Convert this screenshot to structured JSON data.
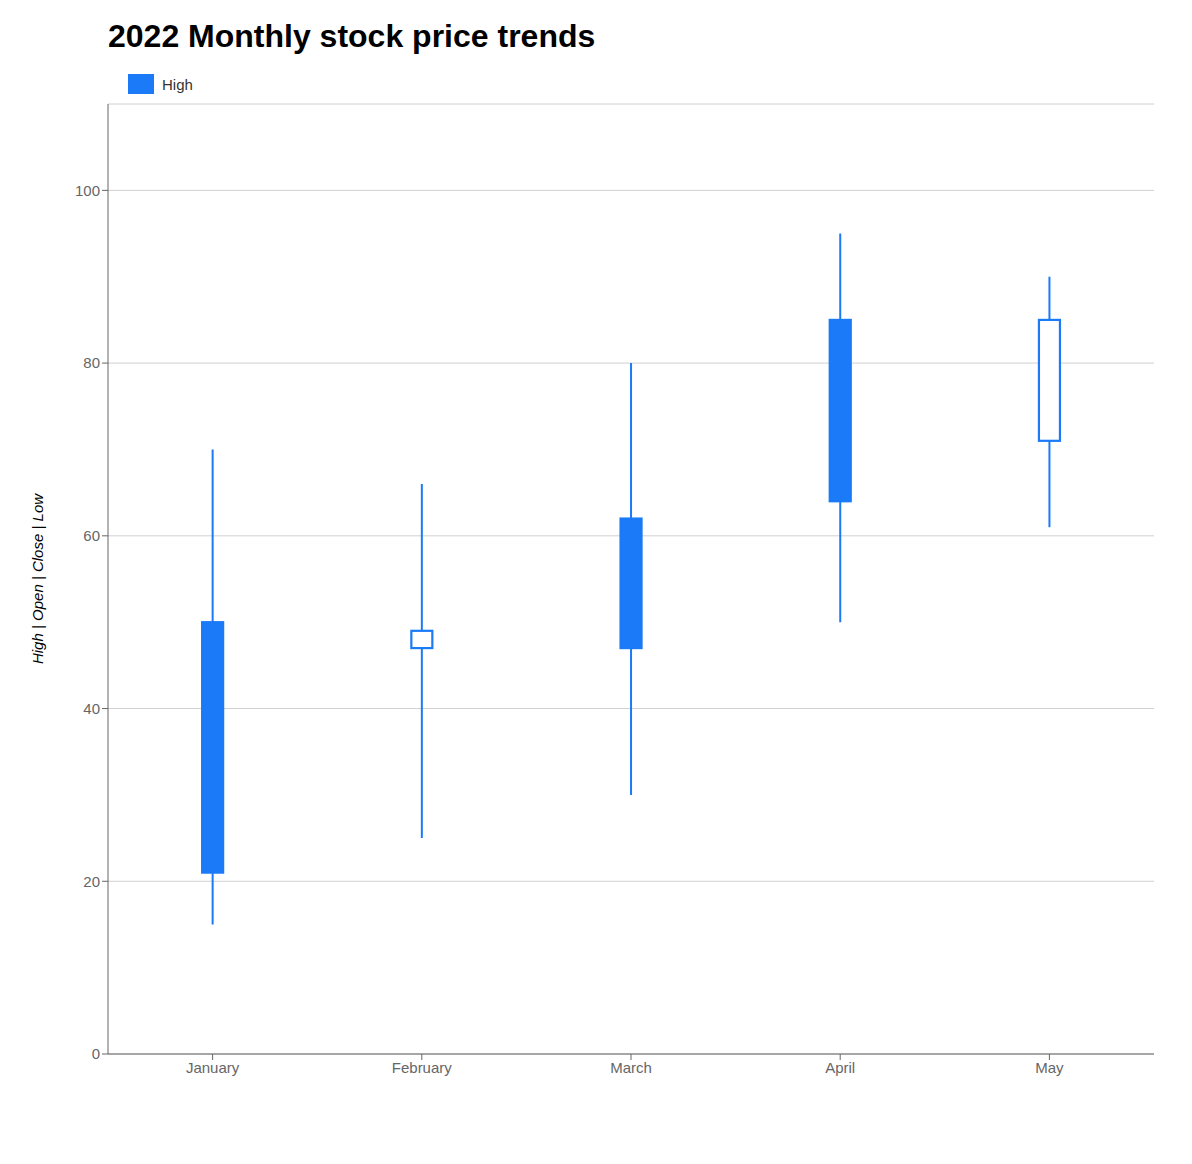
{
  "chart_data": {
    "type": "candlestick",
    "title": "2022 Monthly stock price trends",
    "ylabel": "High | Open | Close | Low",
    "categories": [
      "January",
      "February",
      "March",
      "April",
      "May"
    ],
    "series": [
      {
        "name": "High",
        "color": "#1a7af8",
        "open": [
          50,
          47,
          62,
          85,
          71
        ],
        "high": [
          70,
          66,
          80,
          95,
          90
        ],
        "low": [
          15,
          25,
          30,
          50,
          61
        ],
        "close": [
          21,
          49,
          47,
          64,
          85
        ]
      }
    ],
    "ylim": [
      0,
      110
    ],
    "yticks": [
      0,
      20,
      40,
      60,
      80,
      100
    ],
    "grid": true,
    "legend": "upper left"
  }
}
